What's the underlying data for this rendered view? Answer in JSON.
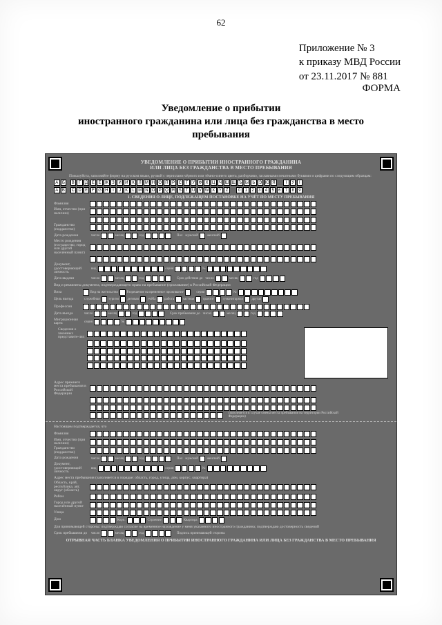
{
  "page_number": "62",
  "attachment": "Приложение № 3",
  "order_ref": "к приказу МВД России",
  "order_date_line": "от  23.11.2017   № 881",
  "form_word": "ФОРМА",
  "main_title_l1": "Уведомление о прибытии",
  "main_title_l2": "иностранного гражданина или лица без гражданства в место",
  "main_title_l3": "пребывания",
  "form_header_l1": "УВЕДОМЛЕНИЕ О ПРИБЫТИИ ИНОСТРАННОГО ГРАЖДАНИНА",
  "form_header_l2": "ИЛИ ЛИЦА БЕЗ ГРАЖДАНСТВА В МЕСТО ПРЕБЫВАНИЯ",
  "instruction": "Пожалуйста, заполняйте форму на русском языке, ручкой с чернилами чёрного или тёмно-синего цвета, разборчиво, заглавными печатными буквами и цифрами по следующим образцам:",
  "alphabet": [
    "А",
    "Б",
    "",
    "В",
    "Г",
    "Д",
    "Е",
    "Ё",
    "Ж",
    "З",
    "И",
    "Й",
    "К",
    "Л",
    "М",
    "Н",
    "О",
    "П",
    "Р",
    "С",
    "Т",
    "У",
    "Ф",
    "Х",
    "Ц",
    "Ч",
    "Ш",
    "Щ",
    "Ъ",
    "Ы",
    "Ь",
    "Э",
    "Ю",
    "Я",
    "",
    "",
    "І",
    "Ў",
    "Ї"
  ],
  "latin": [
    "A",
    "B",
    "",
    "C",
    "D",
    "E",
    "F",
    "G",
    "H",
    "I",
    "J",
    "K",
    "L",
    "M",
    "N",
    "O",
    "P",
    "Q",
    "R",
    "S",
    "T",
    "U",
    "V",
    "W",
    "X",
    "Y",
    "Z",
    "",
    "",
    "0",
    "1",
    "2",
    "3",
    "4",
    "5",
    "6",
    "7",
    "8",
    "9"
  ],
  "section1": "1. СВЕДЕНИЯ О ЛИЦЕ, ПОДЛЕЖАЩЕМ ПОСТАНОВКЕ НА УЧЁТ ПО МЕСТУ ПРЕБЫВАНИЯ",
  "labels": {
    "surname": "Фамилия",
    "name": "Имя, отчество (при наличии)",
    "citizenship": "Гражданство (подданство)",
    "dob": "Дата рождения",
    "day": "число",
    "month": "месяц",
    "year": "год",
    "sex": "Пол",
    "male": "мужской",
    "female": "женский",
    "pob": "Место рождения (государство, город или другой населённый пункт)",
    "doc": "Документ, удостоверяющий личность",
    "docseries": "вид",
    "series": "серия",
    "num": "№",
    "issued": "Дата выдачи",
    "valid": "Срок действия до",
    "right": "Вид и реквизиты документа, подтверждающего право на пребывание (проживание) в Российской Федерации",
    "visa": "Виза",
    "rvp": "Вид на жительство",
    "rvp2": "Разрешение на временное проживание",
    "purpose": "Цель въезда",
    "p_work": "служебная",
    "p_tour": "туризм",
    "p_biz": "деловая",
    "p_study": "учёба",
    "p_job": "работа",
    "p_priv": "частная",
    "p_trans": "транзит",
    "p_hum": "гуманитарная",
    "p_other": "другая",
    "profession": "Профессия",
    "entry": "Дата въезда",
    "until": "Срок пребывания до",
    "migr": "Миграционная карта",
    "info": "Сведения о законных представите-лях",
    "prev_addr": "Адрес прежнего места пребывания в Российской Федерации",
    "note": "(заполняется в случае смены места пребывания на территории Российской Федерации)",
    "tearhead": "Настоящим подтверждается, что",
    "tear_surname": "Фамилия",
    "tear_name": "Имя, отчество (при наличии)",
    "tear_cit": "Гражданство (подданство)",
    "tear_dob": "Дата рождения",
    "tear_doc": "Документ, удостоверяющий личность",
    "tear_addr_head": "Адрес места пребывания (заполняется в порядке: область, город, улица, дом, корпус, квартира)",
    "tear_region": "Область, край, республика, авт. округ (область)",
    "tear_district": "Район",
    "tear_city": "Город или другой населённый пункт",
    "tear_street": "Улица",
    "tear_house": "Дом",
    "tear_corp": "Корп.",
    "tear_bld": "Строение",
    "tear_flat": "Квартира",
    "tear_until": "Срок пребывания до",
    "tear_note": "(дата заполняется принимающей стороной)",
    "footer": "ОТРЫВНАЯ ЧАСТЬ БЛАНКА УВЕДОМЛЕНИЯ О ПРИБЫТИИ ИНОСТРАННОГО ГРАЖДАНИНА ИЛИ ЛИЦА БЕЗ ГРАЖДАНСТВА В МЕСТО ПРЕБЫВАНИЯ",
    "host_sig": "Для принимающей стороны: подтверждаю согласие на временное нахождение у меня указанного иностранного гражданина; подтверждаю достоверность сведений",
    "host_sig2": "Подпись принимающей стороны"
  },
  "colors": {
    "form_bg": "#6a6a6a",
    "box_bg": "#ffffff",
    "text_light": "#dcdcdc"
  }
}
